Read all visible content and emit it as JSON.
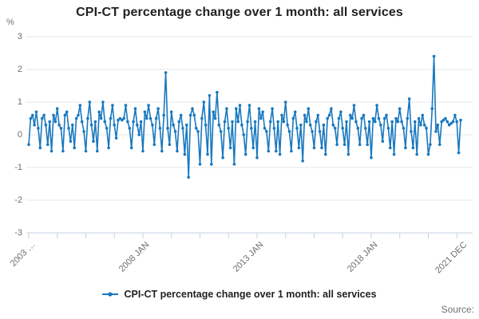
{
  "title": "CPI-CT percentage change over 1 month: all services",
  "y_unit_label": "%",
  "legend": {
    "label": "CPI-CT percentage change over 1 month: all services"
  },
  "source_label": "Source:",
  "colors": {
    "line": "#1878bf",
    "grid": "#e7e7e7",
    "axis_tick": "#c9d2e3",
    "axis_text": "#6e6e6e",
    "title_text": "#222222"
  },
  "chart_data": {
    "type": "line",
    "title": "CPI-CT percentage change over 1 month: all services",
    "xlabel": "",
    "ylabel": "%",
    "x_frequency": "monthly",
    "x_start": "2003 JAN",
    "x_end": "2021 DEC",
    "ylim": [
      -3,
      3
    ],
    "grid": true,
    "legend_position": "bottom",
    "y_ticks": [
      "3",
      "2",
      "1",
      "0",
      "-1",
      "-2",
      "-3"
    ],
    "x_tick_labels": [
      {
        "label": "2003 …",
        "month_index": 0
      },
      {
        "label": "2008 JAN",
        "month_index": 60
      },
      {
        "label": "2013 JAN",
        "month_index": 120
      },
      {
        "label": "2018 JAN",
        "month_index": 180
      },
      {
        "label": "2021 DEC",
        "month_index": 227
      }
    ],
    "notable_points": [
      {
        "month": "2009 JAN",
        "value": 1.9
      },
      {
        "month": "2010 JAN",
        "value": -1.3
      },
      {
        "month": "2020 OCT",
        "value": 2.4
      },
      {
        "month": "2021 NOV",
        "value": -0.55
      }
    ],
    "series": [
      {
        "name": "CPI-CT percentage change over 1 month: all services",
        "values": [
          -0.3,
          0.5,
          0.6,
          0.3,
          0.7,
          0.2,
          -0.4,
          0.5,
          0.6,
          0.3,
          -0.3,
          0.4,
          -0.5,
          0.6,
          0.4,
          0.8,
          0.3,
          0.2,
          -0.5,
          0.6,
          0.7,
          0.2,
          -0.2,
          0.3,
          -0.4,
          0.5,
          0.6,
          0.9,
          0.4,
          0.1,
          -0.5,
          0.5,
          1.0,
          0.3,
          -0.2,
          0.4,
          -0.5,
          0.7,
          0.5,
          1.0,
          0.4,
          0.2,
          -0.4,
          0.5,
          0.9,
          0.3,
          -0.1,
          0.45,
          0.5,
          0.45,
          0.5,
          0.9,
          0.4,
          0.2,
          -0.4,
          0.4,
          0.8,
          0.3,
          0.0,
          0.4,
          -0.5,
          0.7,
          0.5,
          0.9,
          0.5,
          0.3,
          -0.3,
          0.5,
          0.8,
          0.2,
          -0.5,
          0.6,
          1.9,
          0.2,
          -0.3,
          0.7,
          0.3,
          0.1,
          -0.5,
          0.4,
          0.6,
          0.2,
          -0.6,
          0.3,
          -1.3,
          0.6,
          0.8,
          0.6,
          0.2,
          0.1,
          -0.9,
          0.5,
          1.0,
          0.3,
          -0.6,
          1.2,
          -0.9,
          0.7,
          0.5,
          1.3,
          0.3,
          0.1,
          -0.7,
          0.4,
          0.8,
          0.2,
          -0.4,
          0.4,
          -0.9,
          0.8,
          0.4,
          0.9,
          0.3,
          0.0,
          -0.6,
          0.4,
          0.9,
          0.2,
          -0.4,
          0.4,
          -0.7,
          0.8,
          0.5,
          0.7,
          0.2,
          0.1,
          -0.5,
          0.4,
          0.8,
          0.2,
          -0.5,
          0.4,
          -0.6,
          0.6,
          0.4,
          1.0,
          0.3,
          0.1,
          -0.5,
          0.5,
          0.7,
          0.2,
          -0.4,
          0.3,
          -0.8,
          0.6,
          0.4,
          0.8,
          0.3,
          0.1,
          -0.4,
          0.4,
          0.6,
          0.1,
          -0.4,
          0.3,
          -0.6,
          0.5,
          0.6,
          0.8,
          0.3,
          0.2,
          -0.3,
          0.5,
          0.7,
          0.2,
          -0.3,
          0.4,
          -0.6,
          0.6,
          0.5,
          0.9,
          0.4,
          0.2,
          -0.3,
          0.5,
          0.6,
          0.2,
          -0.3,
          0.4,
          -0.7,
          0.5,
          0.4,
          0.9,
          0.5,
          0.3,
          -0.2,
          0.5,
          0.6,
          0.2,
          -0.4,
          0.4,
          -0.6,
          0.5,
          0.4,
          0.8,
          0.4,
          0.2,
          -0.4,
          0.5,
          1.1,
          0.1,
          -0.4,
          0.4,
          -0.6,
          0.5,
          0.3,
          0.6,
          0.3,
          0.2,
          -0.6,
          -0.3,
          0.8,
          2.4,
          0.1,
          0.3,
          -0.3,
          0.4,
          0.45,
          0.5,
          0.4,
          0.3,
          0.35,
          0.4,
          0.6,
          0.4,
          -0.55,
          0.45
        ]
      }
    ]
  }
}
